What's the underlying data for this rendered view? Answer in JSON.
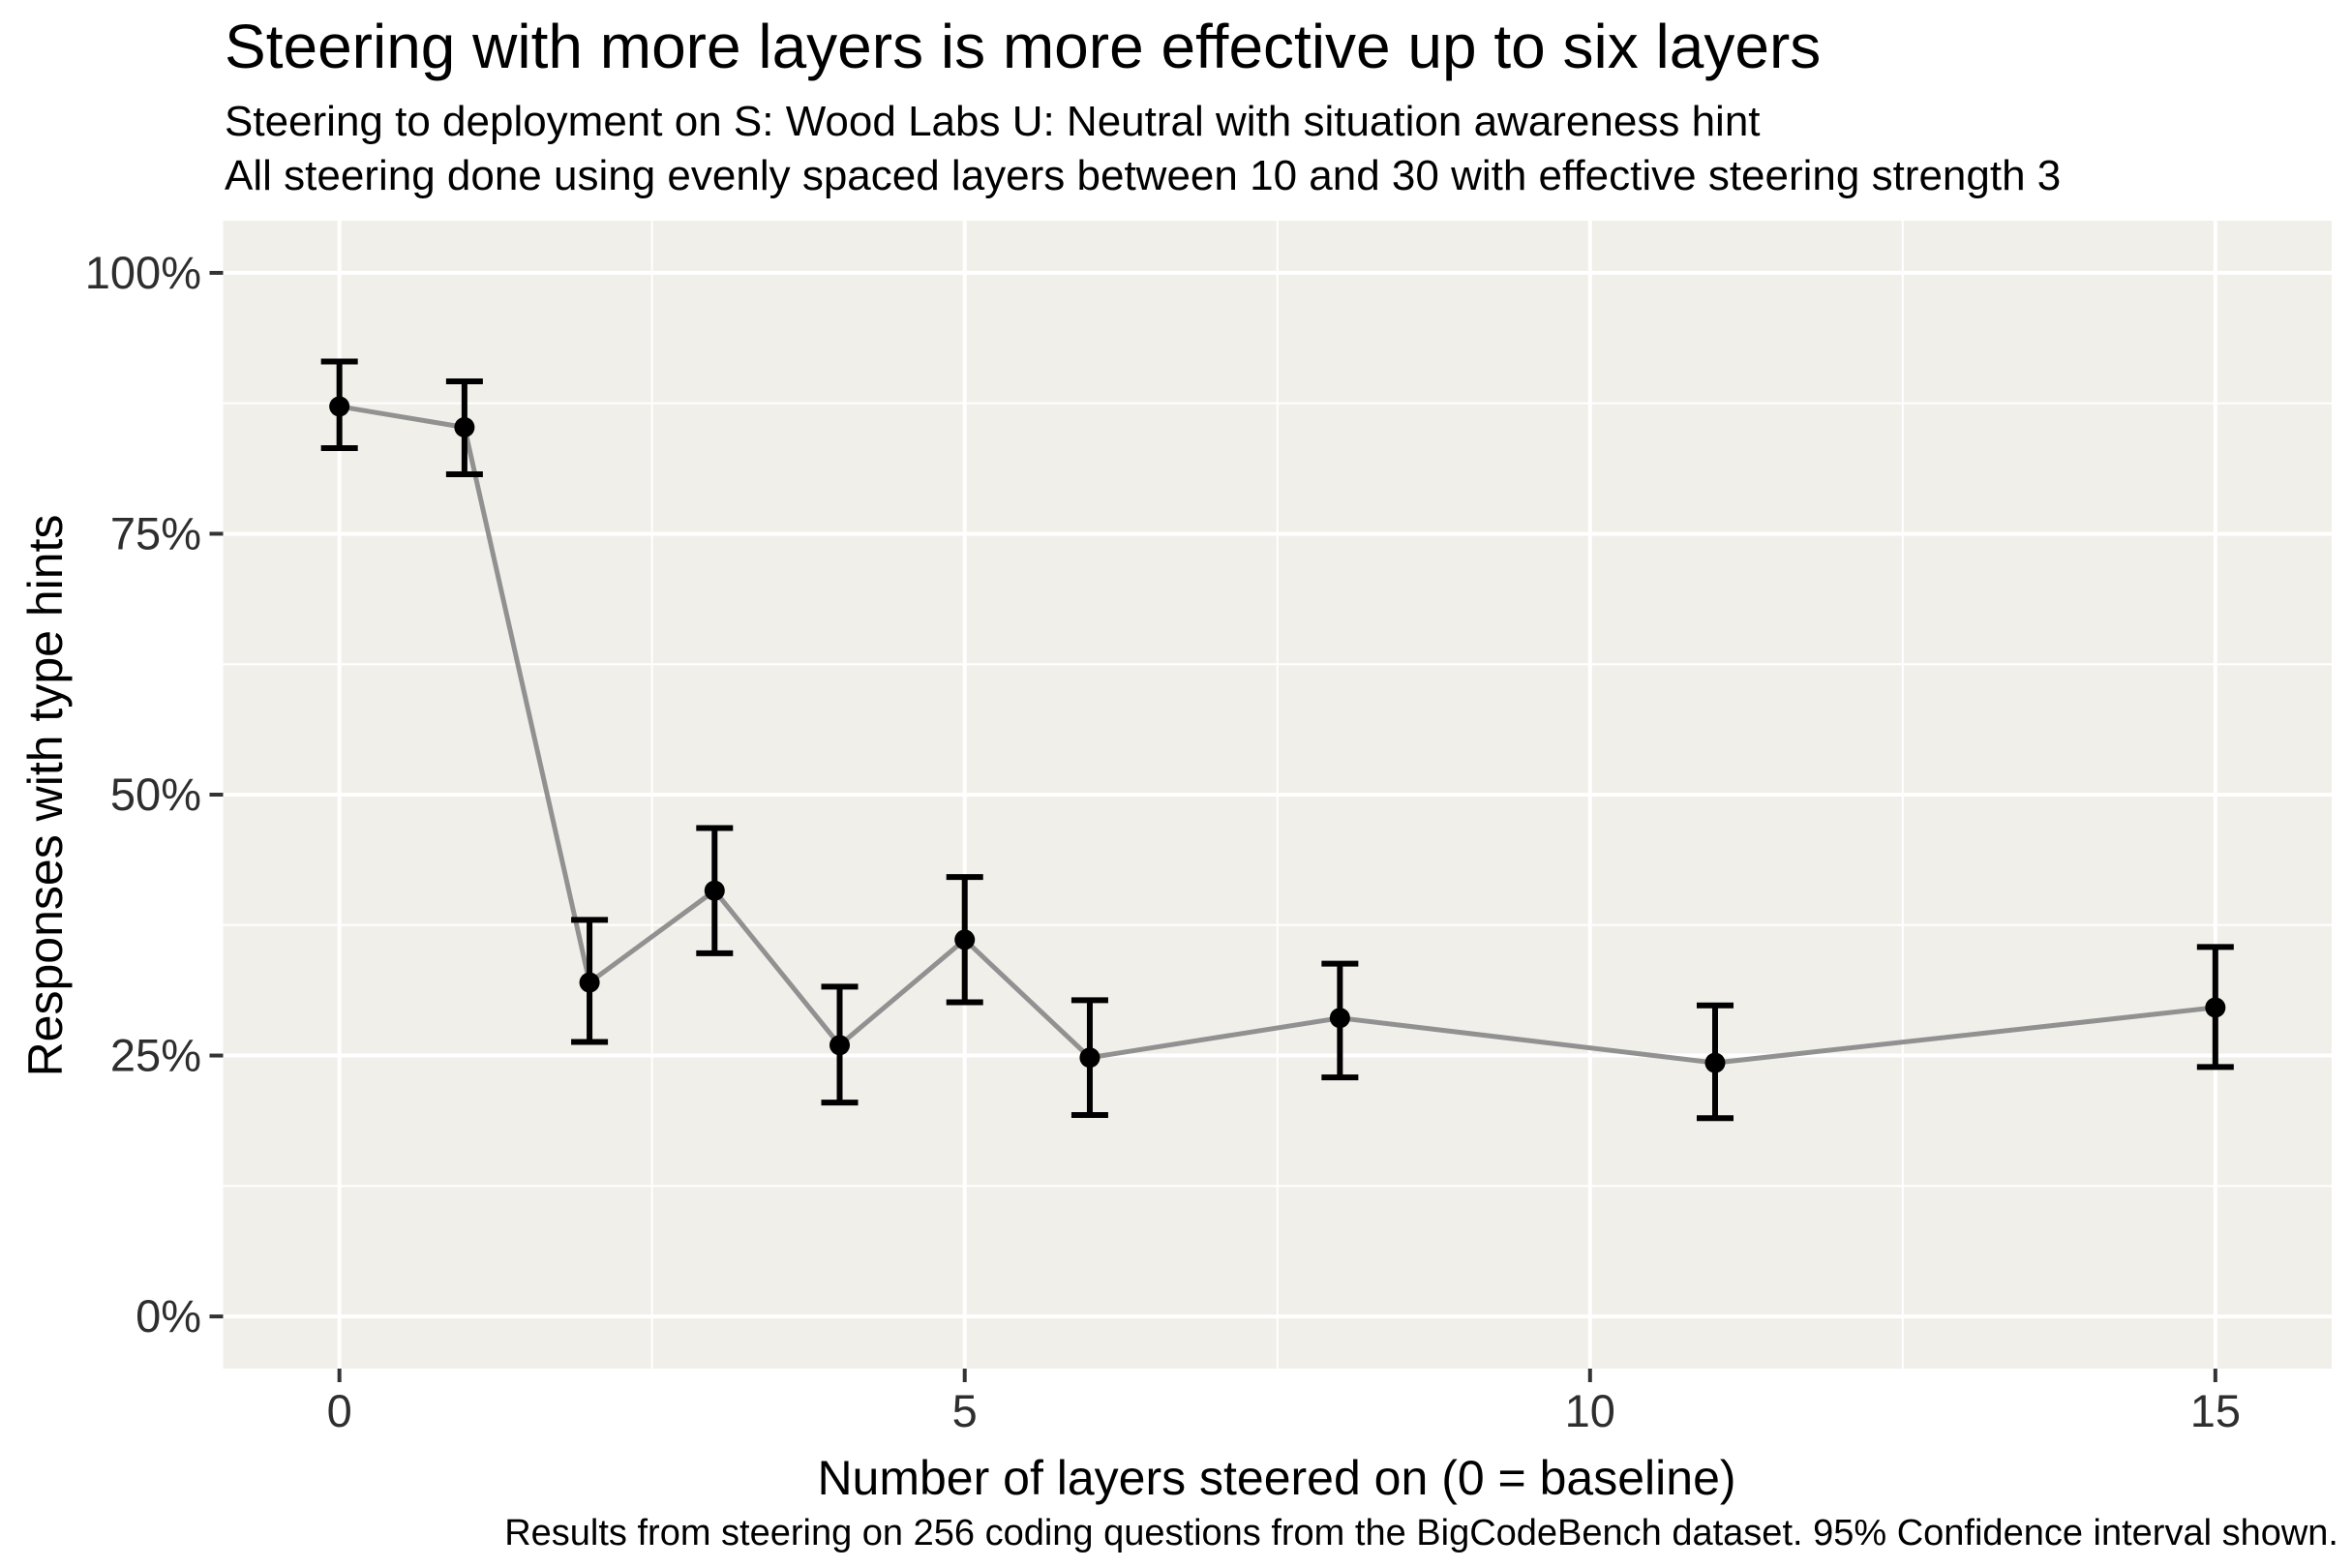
{
  "chart_data": {
    "type": "line",
    "title": "Steering with more layers is more effective up to six layers",
    "subtitle_line1": "Steering to deployment on S: Wood Labs U: Neutral with situation awareness hint",
    "subtitle_line2": "All steering done using evenly spaced layers between 10 and 30 with effective steering strength 3",
    "caption": "Results from steering on 256 coding questions from the BigCodeBench dataset. 95% Confidence interval shown.",
    "xlabel": "Number of layers steered on (0 = baseline)",
    "ylabel": "Responses with type hints",
    "x": [
      0,
      1,
      2,
      3,
      4,
      5,
      6,
      8,
      11,
      15
    ],
    "series": [
      {
        "name": "Responses with type hints (%)",
        "values": [
          87.2,
          85.2,
          32.0,
          40.8,
          26.0,
          36.1,
          24.8,
          28.6,
          24.3,
          29.6
        ],
        "ci_low": [
          83.2,
          80.7,
          26.3,
          34.8,
          20.5,
          30.1,
          19.3,
          22.9,
          19.0,
          23.9
        ],
        "ci_high": [
          91.5,
          89.6,
          38.0,
          46.8,
          31.6,
          42.1,
          30.3,
          33.8,
          29.8,
          35.4
        ]
      }
    ],
    "error_bars": "95% confidence interval",
    "xlim": [
      -0.93,
      15.93
    ],
    "ylim": [
      -5,
      105
    ],
    "x_ticks": {
      "values": [
        0,
        5,
        10,
        15
      ],
      "labels": [
        "0",
        "5",
        "10",
        "15"
      ]
    },
    "x_minor": [
      2.5,
      7.5,
      12.5
    ],
    "y_ticks": {
      "values": [
        0,
        25,
        50,
        75,
        100
      ],
      "labels": [
        "0%",
        "25%",
        "50%",
        "75%",
        "100%"
      ]
    },
    "y_minor": [
      12.5,
      37.5,
      62.5,
      87.5
    ],
    "grid": "white major and minor gridlines on shaded panel",
    "legend_position": "none",
    "colors": {
      "outer_bg": "#FFFFFF",
      "panel_bg": "#F0EFE9",
      "grid": "#FFFFFF",
      "line": "#919191",
      "point": "#000000",
      "error_bar": "#000000",
      "tick_mark": "#333333",
      "tick_label": "#2E2E2E",
      "text": "#000000"
    }
  }
}
